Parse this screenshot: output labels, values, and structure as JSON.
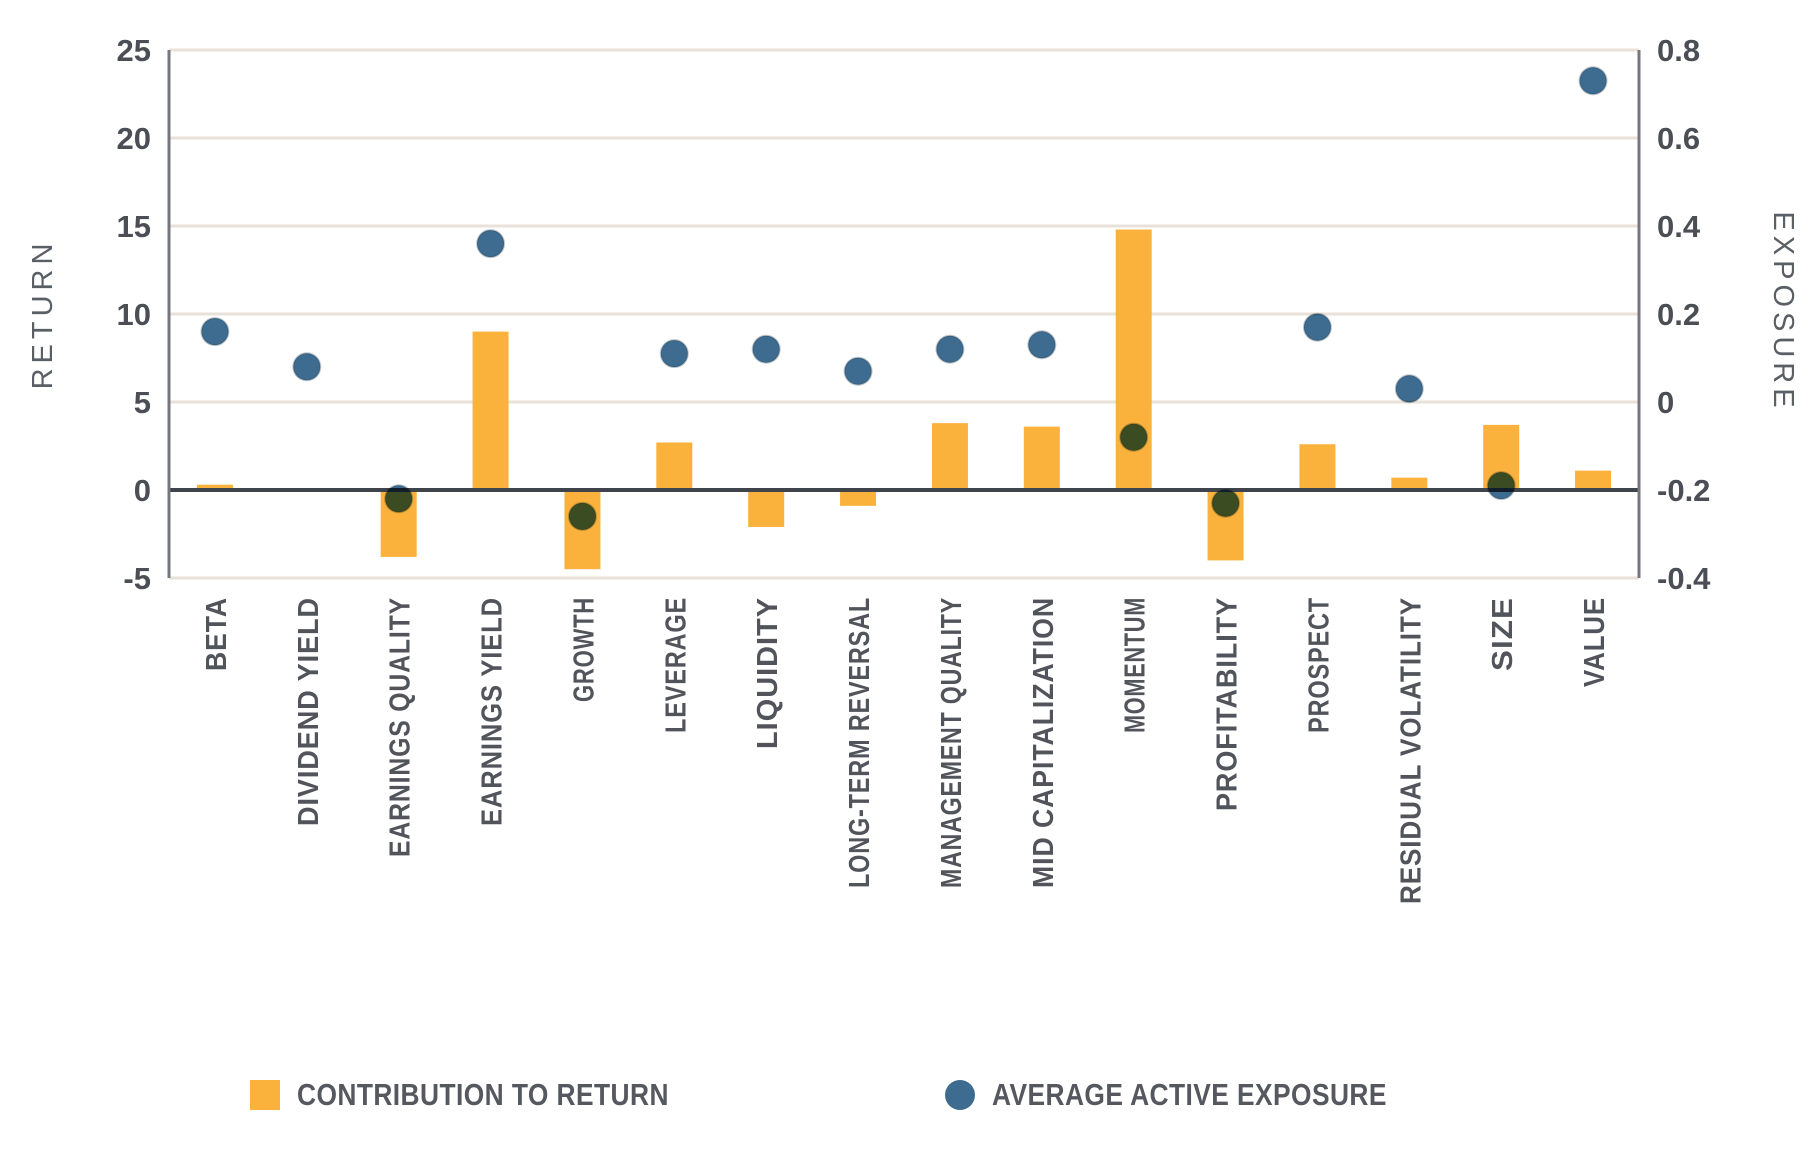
{
  "chart_data": {
    "type": "bar+scatter",
    "title": "",
    "categories": [
      "BETA",
      "DIVIDEND YIELD",
      "EARNINGS QUALITY",
      "EARNINGS YIELD",
      "GROWTH",
      "LEVERAGE",
      "LIQUIDITY",
      "LONG-TERM REVERSAL",
      "MANAGEMENT QUALITY",
      "MID CAPITALIZATION",
      "MOMENTUM",
      "PROFITABILITY",
      "PROSPECT",
      "RESIDUAL VOLATILITY",
      "SIZE",
      "VALUE"
    ],
    "series": [
      {
        "name": "CONTRIBUTION TO RETURN",
        "type": "bar",
        "axis": "left",
        "color": "#FAB23C",
        "values": [
          0.3,
          0.1,
          -3.8,
          9.0,
          -4.5,
          2.7,
          -2.1,
          -0.9,
          3.8,
          3.6,
          14.8,
          -4.0,
          2.6,
          0.7,
          3.7,
          1.1
        ]
      },
      {
        "name": "AVERAGE ACTIVE EXPOSURE",
        "type": "scatter",
        "axis": "right",
        "color": "#3D6C90",
        "values": [
          0.16,
          0.08,
          -0.22,
          0.36,
          -0.26,
          0.11,
          0.12,
          0.07,
          0.12,
          0.13,
          -0.08,
          -0.23,
          0.17,
          0.03,
          -0.19,
          0.73
        ]
      }
    ],
    "left_axis": {
      "label": "RETURN",
      "min": -5,
      "max": 25,
      "ticks": [
        "25",
        "20",
        "15",
        "10",
        "5",
        "0",
        "-5"
      ]
    },
    "right_axis": {
      "label": "EXPOSURE",
      "min": -0.4,
      "max": 0.8,
      "ticks": [
        "0.8",
        "0.6",
        "0.4",
        "0.2",
        "0",
        "-0.2",
        "-0.4"
      ]
    },
    "grid": true,
    "zero_line_on_left_axis": 0,
    "legend_position": "bottom"
  },
  "colors": {
    "background": "#FFFFFF",
    "bar": "#FAB23C",
    "dot": "#3D6C90",
    "dot_over_bar_overlap": "#3C4B22",
    "gridline": "#E8E2DA",
    "zero_line": "#3F444C",
    "axis_line": "#74777D",
    "tick_text": "#4B4F55",
    "category_text": "#51555B",
    "axis_title_text": "#5A5E65",
    "legend_text": "#55585E"
  }
}
